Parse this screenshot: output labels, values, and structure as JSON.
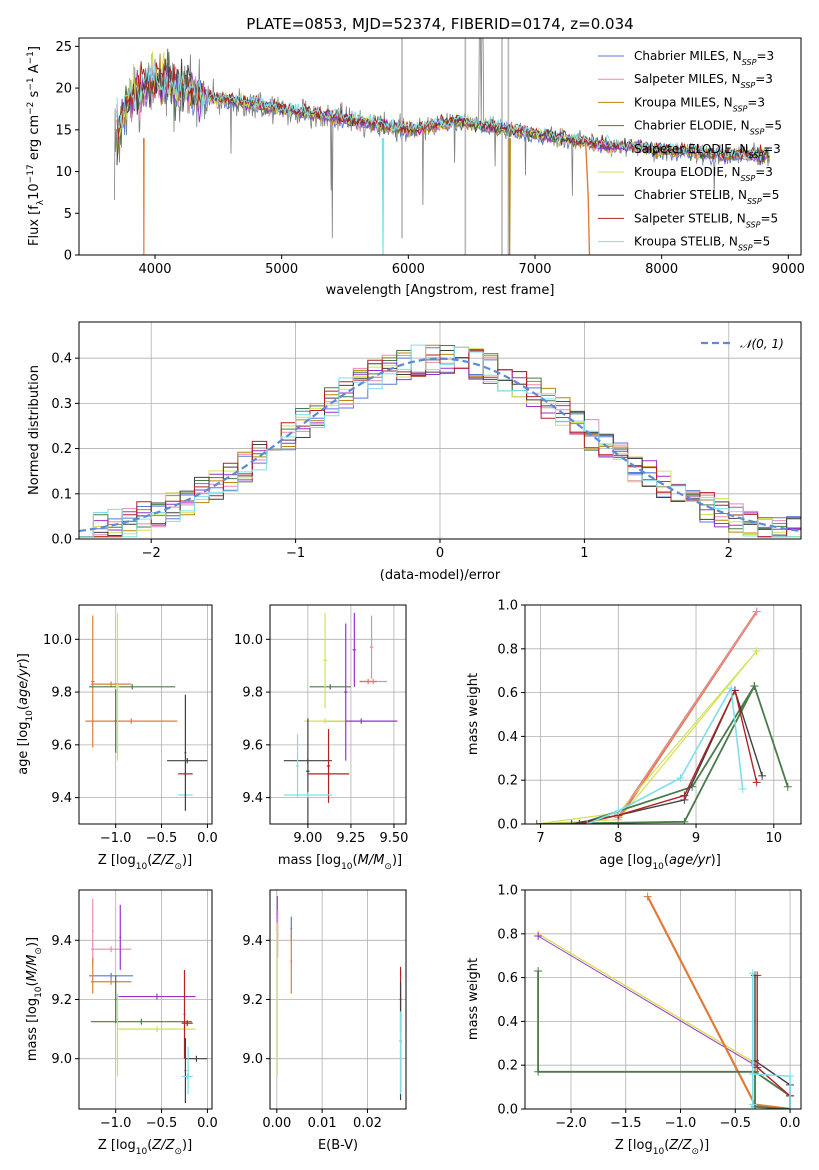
{
  "title": "PLATE=0853, MJD=52374, FIBERID=0174, z=0.034",
  "colors": {
    "Chabrier MILES": "#5b79d6",
    "Salpeter MILES": "#e88bb4",
    "Kroupa MILES": "#b8860b",
    "Chabrier ELODIE": "#4a7a4a",
    "Salpeter ELODIE": "#9932cc",
    "Kroupa ELODIE": "#d4e157",
    "Chabrier STELIB": "#404040",
    "Salpeter STELIB": "#b22222",
    "Kroupa STELIB": "#80deea",
    "orange": "#e07b39"
  },
  "legend_spectrum": [
    "Chabrier MILES, N_SSP=3",
    "Salpeter MILES, N_SSP=3",
    "Kroupa MILES, N_SSP=3",
    "Chabrier ELODIE, N_SSP=5",
    "Salpeter ELODIE, N_SSP=3",
    "Kroupa ELODIE, N_SSP=3",
    "Chabrier STELIB, N_SSP=5",
    "Salpeter STELIB, N_SSP=5",
    "Kroupa STELIB, N_SSP=5"
  ],
  "legend_hist": "N(0,1)",
  "chart_data": [
    {
      "id": "spectrum",
      "type": "line",
      "xlabel": "wavelength [Angstrom, rest frame]",
      "ylabel": "Flux [f_λ 10^-17 erg cm^-2 s^-1 A^-1]",
      "xlim": [
        3400,
        9100
      ],
      "ylim": [
        0,
        26
      ],
      "xticks": [
        4000,
        5000,
        6000,
        7000,
        8000,
        9000
      ],
      "yticks": [
        0,
        5,
        10,
        15,
        20,
        25
      ],
      "grid": false,
      "legend": "upper right",
      "continuum": {
        "x": [
          3700,
          3800,
          3900,
          4000,
          4100,
          4200,
          4400,
          4600,
          4800,
          5000,
          5200,
          5400,
          5600,
          5800,
          6000,
          6200,
          6400,
          6600,
          6800,
          7000,
          7200,
          7400,
          7600,
          7800,
          8000,
          8200,
          8400,
          8600,
          8850
        ],
        "y": [
          14.5,
          19,
          20,
          21,
          20.5,
          20,
          19,
          18.5,
          18,
          17.5,
          17,
          16.5,
          16,
          15.5,
          15,
          15.5,
          16,
          15.5,
          15,
          14.5,
          14,
          13.5,
          13,
          13,
          12.5,
          12.5,
          12,
          12,
          12
        ]
      }
    },
    {
      "id": "residual_hist",
      "type": "line",
      "xlabel": "(data-model)/error",
      "ylabel": "Normed distribution",
      "xlim": [
        -2.5,
        2.5
      ],
      "ylim": [
        0,
        0.48
      ],
      "xticks": [
        -2,
        -1,
        0,
        1,
        2
      ],
      "yticks": [
        0.0,
        0.1,
        0.2,
        0.3,
        0.4
      ],
      "grid": true,
      "legend": "upper right"
    },
    {
      "id": "age_vs_Z",
      "type": "scatter",
      "xlabel": "Z [log10(Z/Z⊙)]",
      "ylabel": "age [log10(age/yr)]",
      "xlim": [
        -1.4,
        0.05
      ],
      "ylim": [
        9.3,
        10.13
      ],
      "xticks": [
        -1.0,
        -0.5,
        0.0
      ],
      "yticks": [
        9.4,
        9.6,
        9.8,
        10.0
      ],
      "grid": true
    },
    {
      "id": "age_vs_mass",
      "type": "scatter",
      "xlabel": "mass [log10(M/M⊙)]",
      "ylabel": "",
      "xlim": [
        8.78,
        9.57
      ],
      "ylim": [
        9.3,
        10.13
      ],
      "xticks": [
        9.0,
        9.25,
        9.5
      ],
      "yticks": [
        9.4,
        9.6,
        9.8,
        10.0
      ],
      "grid": true
    },
    {
      "id": "massweight_vs_age",
      "type": "line",
      "xlabel": "age [log10(age/yr)]",
      "ylabel": "mass weight",
      "xlim": [
        6.8,
        10.35
      ],
      "ylim": [
        0,
        1
      ],
      "xticks": [
        7,
        8,
        9,
        10
      ],
      "yticks": [
        0.0,
        0.2,
        0.4,
        0.6,
        0.8,
        1.0
      ],
      "grid": true
    },
    {
      "id": "mass_vs_Z",
      "type": "scatter",
      "xlabel": "Z [log10(Z/Z⊙)]",
      "ylabel": "mass [log10(M/M⊙)]",
      "xlim": [
        -1.4,
        0.05
      ],
      "ylim": [
        8.83,
        9.57
      ],
      "xticks": [
        -1.0,
        -0.5,
        0.0
      ],
      "yticks": [
        9.0,
        9.2,
        9.4
      ],
      "grid": true
    },
    {
      "id": "mass_vs_ebv",
      "type": "scatter",
      "xlabel": "E(B-V)",
      "ylabel": "",
      "xlim": [
        -0.0015,
        0.0285
      ],
      "ylim": [
        8.83,
        9.57
      ],
      "xticks": [
        0.0,
        0.01,
        0.02
      ],
      "yticks": [
        9.0,
        9.2,
        9.4
      ],
      "grid": true
    },
    {
      "id": "massweight_vs_Z",
      "type": "line",
      "xlabel": "Z [log10(Z/Z⊙)]",
      "ylabel": "mass weight",
      "xlim": [
        -2.42,
        0.1
      ],
      "ylim": [
        0,
        1
      ],
      "xticks": [
        -2.0,
        -1.5,
        -1.0,
        -0.5,
        0.0
      ],
      "yticks": [
        0.0,
        0.2,
        0.4,
        0.6,
        0.8,
        1.0
      ],
      "grid": true
    }
  ]
}
